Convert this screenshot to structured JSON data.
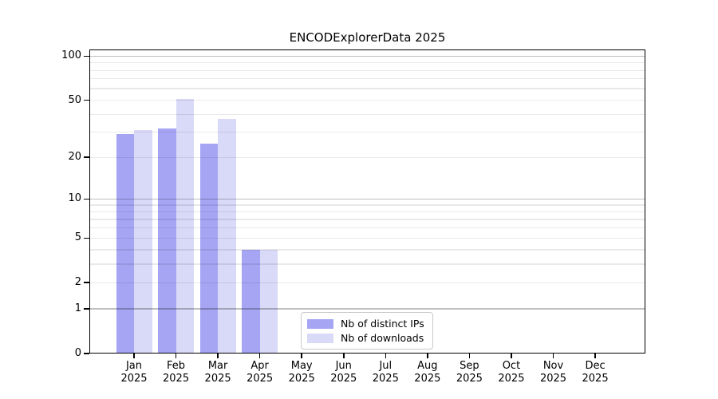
{
  "title": "ENCODExplorerData 2025",
  "chart_data": {
    "type": "bar",
    "title": "ENCODExplorerData 2025",
    "categories": [
      "Jan",
      "Feb",
      "Mar",
      "Apr",
      "May",
      "Jun",
      "Jul",
      "Aug",
      "Sep",
      "Oct",
      "Nov",
      "Dec"
    ],
    "year_label": "2025",
    "series": [
      {
        "name": "Nb of distinct IPs",
        "color": "#a5a5f4",
        "values": [
          29,
          32,
          25,
          4,
          0,
          0,
          0,
          0,
          0,
          0,
          0,
          0
        ]
      },
      {
        "name": "Nb of downloads",
        "color": "#d9d9f8",
        "values": [
          31,
          51,
          37,
          4,
          0,
          0,
          0,
          0,
          0,
          0,
          0,
          0
        ]
      }
    ],
    "yscale": "log1p",
    "ylabel": "",
    "xlabel": "",
    "y_axis": {
      "tick_values": [
        0,
        1,
        2,
        5,
        10,
        20,
        50,
        100
      ],
      "tick_labels": [
        "0",
        "1",
        "2",
        "5",
        "10",
        "20",
        "50",
        "100"
      ],
      "major_gridlines": [
        1,
        10,
        100
      ],
      "minor_gridlines": [
        2,
        3,
        4,
        5,
        6,
        7,
        8,
        9,
        20,
        30,
        40,
        50,
        60,
        70,
        80,
        90
      ],
      "ylim": [
        0,
        111
      ]
    },
    "grid": true,
    "legend_position": "lower center"
  },
  "legend": {
    "items": [
      {
        "label": "Nb of distinct IPs",
        "color": "#a5a5f4"
      },
      {
        "label": "Nb of downloads",
        "color": "#d9d9f8"
      }
    ]
  },
  "colors": {
    "background": "#ffffff",
    "bar_distinct_ips": "#a5a5f4",
    "bar_downloads": "#d9d9f8",
    "grid_major": "rgba(0,0,0,0.25)",
    "grid_minor": "rgba(0,0,0,0.085)",
    "spine": "#000000",
    "legend_border": "#c9c9c9",
    "text": "#000000"
  }
}
